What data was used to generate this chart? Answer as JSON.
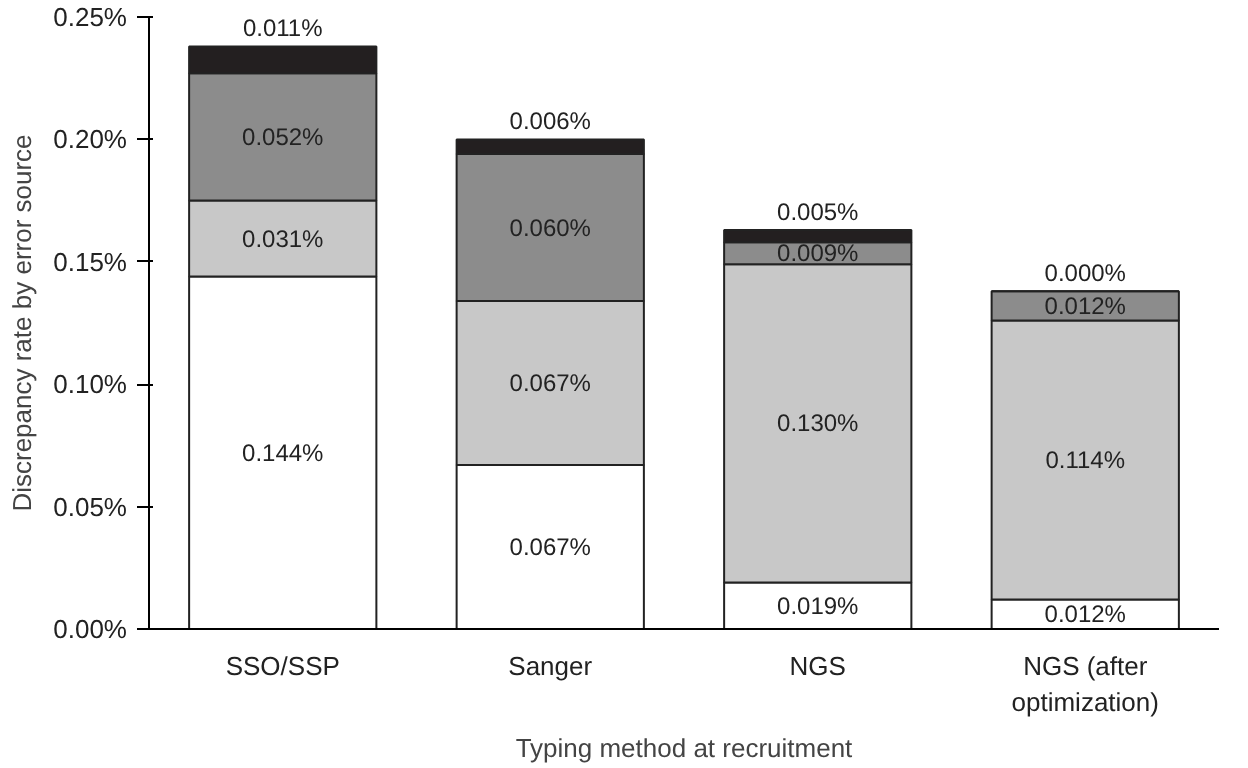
{
  "chart_data": {
    "type": "bar",
    "stacked": true,
    "xlabel": "Typing method at recruitment",
    "ylabel": "Discrepancy rate by error source",
    "categories": [
      "SSO/SSP",
      "Sanger",
      "NGS",
      "NGS (after optimization)"
    ],
    "ylim": [
      0,
      0.25
    ],
    "yticks": [
      {
        "value": 0,
        "label": "0.00%"
      },
      {
        "value": 0.05,
        "label": "0.05%"
      },
      {
        "value": 0.1,
        "label": "0.10%"
      },
      {
        "value": 0.15,
        "label": "0.15%"
      },
      {
        "value": 0.2,
        "label": "0.20%"
      },
      {
        "value": 0.25,
        "label": "0.25%"
      }
    ],
    "grid": false,
    "series": [
      {
        "color": "#ffffff",
        "values": [
          0.144,
          0.067,
          0.019,
          0.012
        ],
        "value_labels": [
          "0.144%",
          "0.067%",
          "0.019%",
          "0.012%"
        ]
      },
      {
        "color": "#c8c8c8",
        "values": [
          0.031,
          0.067,
          0.13,
          0.114
        ],
        "value_labels": [
          "0.031%",
          "0.067%",
          "0.130%",
          "0.114%"
        ]
      },
      {
        "color": "#8c8c8c",
        "values": [
          0.052,
          0.06,
          0.009,
          0.012
        ],
        "value_labels": [
          "0.052%",
          "0.060%",
          "0.009%",
          "0.012%"
        ]
      },
      {
        "color": "#231f20",
        "values": [
          0.011,
          0.006,
          0.005,
          0.0
        ],
        "value_labels": [
          "0.011%",
          "0.006%",
          "0.005%",
          "0.000%"
        ]
      }
    ]
  }
}
